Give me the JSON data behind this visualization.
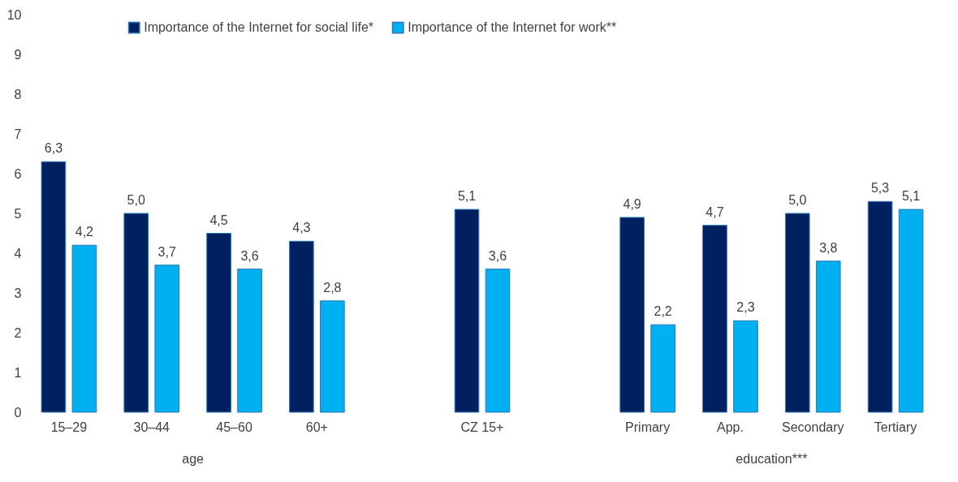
{
  "chart_data": {
    "type": "bar",
    "categories": [
      "15–29",
      "30–44",
      "45–60",
      "60+",
      null,
      "CZ 15+",
      null,
      "Primary",
      "App.",
      "Secondary",
      "Tertiary"
    ],
    "series": [
      {
        "name": "Importance of the Internet for social life*",
        "color": "#002060",
        "values": [
          6.3,
          5.0,
          4.5,
          4.3,
          null,
          5.1,
          null,
          4.9,
          4.7,
          5.0,
          5.3
        ],
        "value_labels": [
          "6,3",
          "5,0",
          "4,5",
          "4,3",
          null,
          "5,1",
          null,
          "4,9",
          "4,7",
          "5,0",
          "5,3"
        ]
      },
      {
        "name": "Importance of the Internet for work**",
        "color": "#00b0f0",
        "values": [
          4.2,
          3.7,
          3.6,
          2.8,
          null,
          3.6,
          null,
          2.2,
          2.3,
          3.8,
          5.1
        ],
        "value_labels": [
          "4,2",
          "3,7",
          "3,6",
          "2,8",
          null,
          "3,6",
          null,
          "2,2",
          "2,3",
          "3,8",
          "5,1"
        ]
      }
    ],
    "ylim": [
      0,
      10
    ],
    "yticks": [
      0,
      1,
      2,
      3,
      4,
      5,
      6,
      7,
      8,
      9,
      10
    ],
    "grid": false,
    "legend": "top",
    "annotations": [
      "age",
      "education***"
    ]
  }
}
